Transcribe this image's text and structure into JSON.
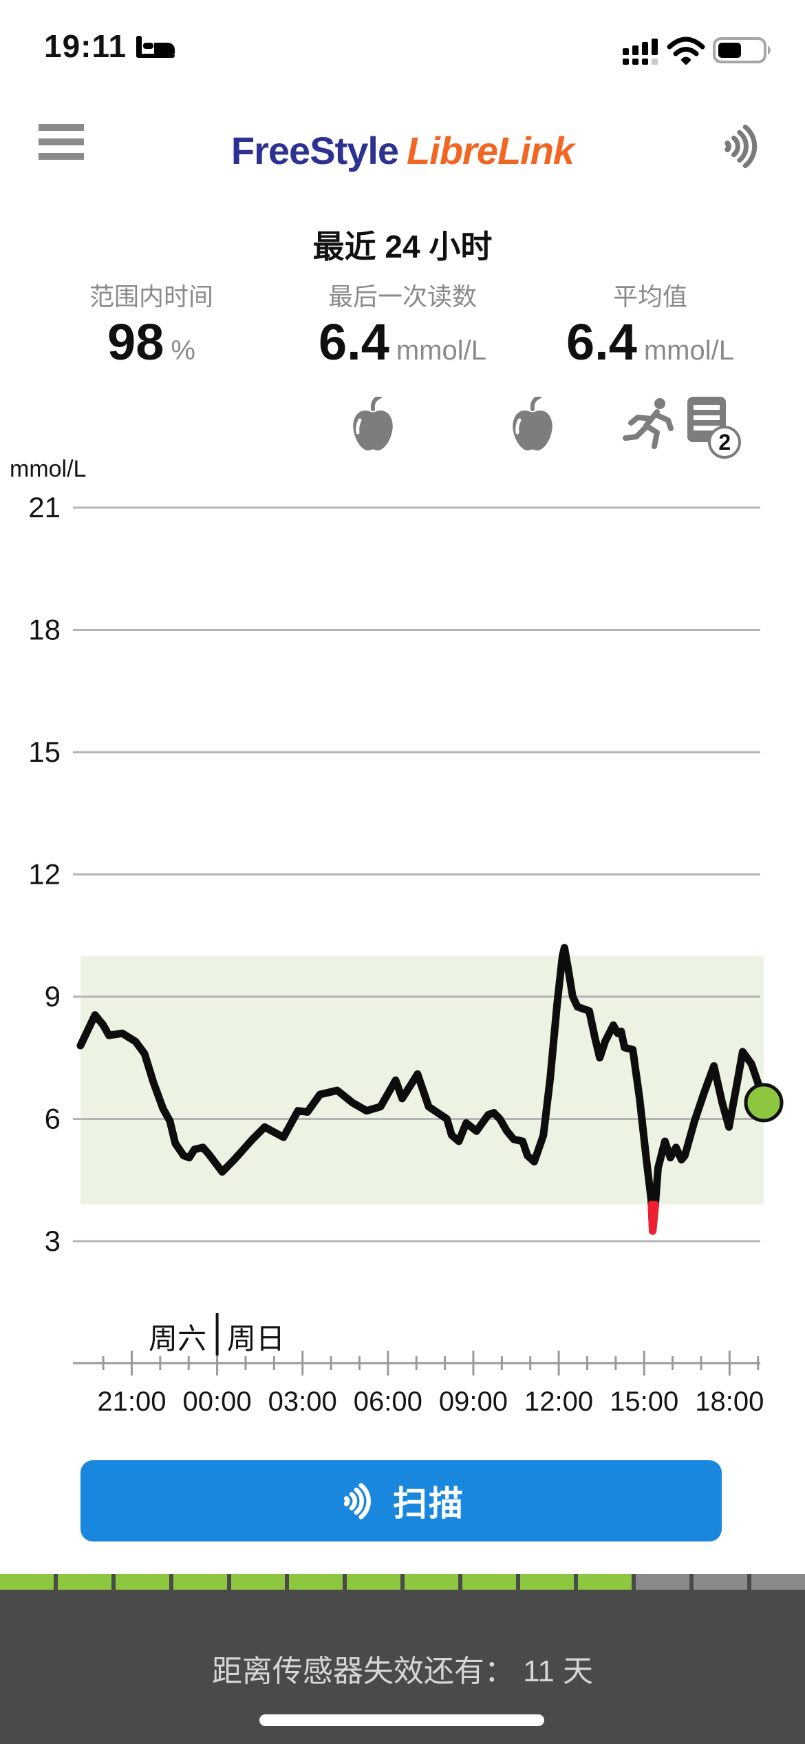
{
  "status_bar": {
    "time": "19:11",
    "focus_icon": "bed-sleep-focus",
    "cellular": "dual-sim-3-of-4",
    "wifi": "on",
    "battery_percent": 50
  },
  "header": {
    "menu_icon": "hamburger",
    "logo_freestyle": "FreeStyle",
    "logo_librelink": "LibreLink",
    "scan_icon": "nfc-waves",
    "logo_blue": "#2d3192",
    "logo_orange": "#f26522"
  },
  "summary": {
    "title": "最近 24 小时",
    "time_in_range": {
      "label": "范围内时间",
      "value": "98",
      "unit": "%"
    },
    "last_reading": {
      "label": "最后一次读数",
      "value": "6.4",
      "unit": "mmol/L"
    },
    "average": {
      "label": "平均值",
      "unit": "mmol/L",
      "value": "6.4"
    }
  },
  "events": [
    {
      "name": "meal-apple",
      "hour": 10.25
    },
    {
      "name": "meal-apple",
      "hour": 15.85
    },
    {
      "name": "exercise-runner",
      "hour": 19.92
    },
    {
      "name": "notes",
      "hour": 22.0,
      "badge": "2"
    }
  ],
  "chart_data": {
    "type": "line",
    "unit": "mmol/L",
    "y_ticks": [
      3,
      6,
      9,
      12,
      15,
      18,
      21
    ],
    "y_range": [
      2.2,
      22.3
    ],
    "grid": true,
    "target_range": {
      "low": 3.9,
      "high": 10.0,
      "fill": "#edf3e2"
    },
    "x_axis": {
      "hours": 24,
      "window": "最近 24 小时 (周六 19:12 — 周日 19:11)",
      "tick_labels": [
        "21:00",
        "00:00",
        "03:00",
        "06:00",
        "09:00",
        "12:00",
        "15:00",
        "18:00"
      ],
      "tick_hours": [
        1.8,
        4.8,
        7.8,
        10.8,
        13.8,
        16.8,
        19.8,
        22.8
      ],
      "minor_tick_every_hours": 1,
      "day_labels": [
        "周六",
        "周日"
      ],
      "day_boundary_hour": 4.8
    },
    "series": [
      {
        "name": "glucose-mmol-per-L",
        "color": "#0d0d0d",
        "points": [
          [
            0,
            7.8
          ],
          [
            0.51,
            8.55
          ],
          [
            0.8,
            8.3
          ],
          [
            1.0,
            8.05
          ],
          [
            1.47,
            8.1
          ],
          [
            1.7,
            8.0
          ],
          [
            1.93,
            7.9
          ],
          [
            2.25,
            7.6
          ],
          [
            2.56,
            6.9
          ],
          [
            2.9,
            6.25
          ],
          [
            3.14,
            5.95
          ],
          [
            3.33,
            5.4
          ],
          [
            3.62,
            5.1
          ],
          [
            3.82,
            5.05
          ],
          [
            4.0,
            5.25
          ],
          [
            4.3,
            5.3
          ],
          [
            4.49,
            5.15
          ],
          [
            4.98,
            4.7
          ],
          [
            5.4,
            5.0
          ],
          [
            6.04,
            5.5
          ],
          [
            6.47,
            5.8
          ],
          [
            7.13,
            5.55
          ],
          [
            7.64,
            6.2
          ],
          [
            7.97,
            6.17
          ],
          [
            8.41,
            6.6
          ],
          [
            9.02,
            6.7
          ],
          [
            9.55,
            6.4
          ],
          [
            10.05,
            6.2
          ],
          [
            10.54,
            6.3
          ],
          [
            11.07,
            6.95
          ],
          [
            11.3,
            6.5
          ],
          [
            11.84,
            7.1
          ],
          [
            12.23,
            6.3
          ],
          [
            12.87,
            6.0
          ],
          [
            13.04,
            5.6
          ],
          [
            13.29,
            5.45
          ],
          [
            13.55,
            5.9
          ],
          [
            13.91,
            5.7
          ],
          [
            14.32,
            6.1
          ],
          [
            14.52,
            6.15
          ],
          [
            14.73,
            6.0
          ],
          [
            14.98,
            5.7
          ],
          [
            15.22,
            5.5
          ],
          [
            15.53,
            5.45
          ],
          [
            15.7,
            5.1
          ],
          [
            15.94,
            4.95
          ],
          [
            16.26,
            5.6
          ],
          [
            16.5,
            7.0
          ],
          [
            16.74,
            8.8
          ],
          [
            16.93,
            10.0
          ],
          [
            17.0,
            10.2
          ],
          [
            17.15,
            9.6
          ],
          [
            17.29,
            9.0
          ],
          [
            17.46,
            8.75
          ],
          [
            17.87,
            8.65
          ],
          [
            18.07,
            8.0
          ],
          [
            18.24,
            7.5
          ],
          [
            18.43,
            7.9
          ],
          [
            18.72,
            8.3
          ],
          [
            18.87,
            8.1
          ],
          [
            18.99,
            8.15
          ],
          [
            19.11,
            7.75
          ],
          [
            19.4,
            7.7
          ],
          [
            19.64,
            6.5
          ],
          [
            19.88,
            5.0
          ],
          [
            20.05,
            4.0
          ],
          [
            20.1,
            3.25
          ],
          [
            20.19,
            3.9
          ],
          [
            20.29,
            4.8
          ],
          [
            20.53,
            5.45
          ],
          [
            20.72,
            5.05
          ],
          [
            20.92,
            5.3
          ],
          [
            21.11,
            5.0
          ],
          [
            21.23,
            5.1
          ],
          [
            21.57,
            5.95
          ],
          [
            21.91,
            6.65
          ],
          [
            22.25,
            7.3
          ],
          [
            22.54,
            6.4
          ],
          [
            22.78,
            5.8
          ],
          [
            23.07,
            6.9
          ],
          [
            23.26,
            7.65
          ],
          [
            23.57,
            7.35
          ],
          [
            23.79,
            6.9
          ],
          [
            24,
            6.4
          ]
        ]
      }
    ],
    "low_excursion": {
      "color": "#ec2030",
      "points": [
        [
          20.06,
          3.9
        ],
        [
          20.1,
          3.25
        ],
        [
          20.19,
          3.9
        ]
      ]
    },
    "current_reading": {
      "hour": 24,
      "value": 6.4,
      "marker_color": "#8dc63f",
      "marker_outline": "#111111"
    }
  },
  "scan_button": {
    "label": "扫描",
    "color": "#1987dd",
    "icon": "nfc-waves"
  },
  "footer": {
    "message": "距离传感器失效还有： 11 天",
    "days_left": 11,
    "segments_total": 14,
    "segments_active": 11,
    "active_color": "#8dc63f",
    "inactive_color": "#8a8a8a",
    "bar_color": "#4a4a4a"
  }
}
